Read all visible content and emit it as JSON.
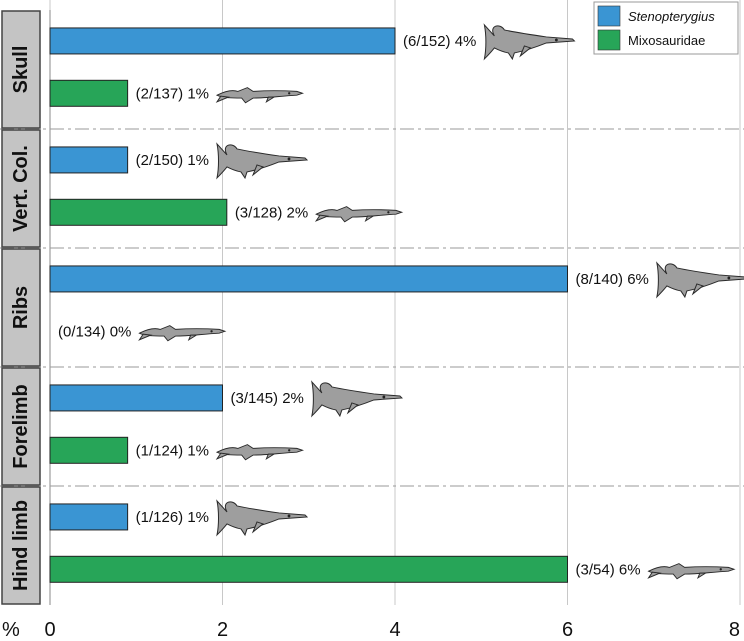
{
  "chart_data": {
    "type": "bar",
    "orientation": "horizontal",
    "categories": [
      "Skull",
      "Vert. Col.",
      "Ribs",
      "Forelimb",
      "Hind limb"
    ],
    "series": [
      {
        "name": "Stenopterygius",
        "color": "#3a95d3",
        "values": [
          4,
          0.9,
          6,
          2,
          0.9
        ],
        "labels": [
          "(6/152) 4%",
          "(2/150) 1%",
          "(8/140) 6%",
          "(3/145) 2%",
          "(1/126) 1%"
        ]
      },
      {
        "name": "Mixosauridae",
        "color": "#27a558",
        "values": [
          0.9,
          2.05,
          0,
          0.9,
          6
        ],
        "labels": [
          "(2/137) 1%",
          "(3/128) 2%",
          "(0/134) 0%",
          "(1/124) 1%",
          "(3/54) 6%"
        ]
      }
    ],
    "xlabel": "%",
    "xlim": [
      0,
      8
    ],
    "xticks": [
      "0",
      "2",
      "4",
      "6",
      "8"
    ],
    "grid": true,
    "legend_position": "top-right",
    "icons": [
      "ichthyosaur-icon"
    ]
  }
}
